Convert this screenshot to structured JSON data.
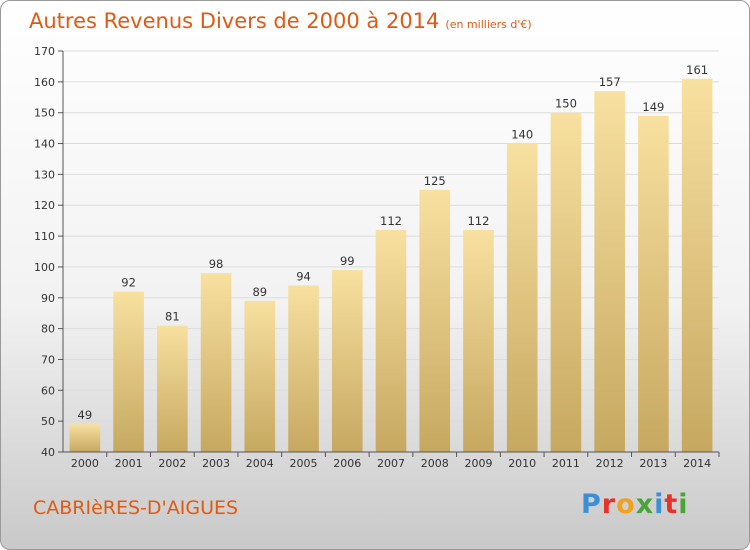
{
  "header": {
    "title": "Autres Revenus Divers de 2000 à 2014",
    "unit": "(en milliers d'€)"
  },
  "footer": {
    "commune": "CABRIèRES-D'AIGUES",
    "brand": "Proxiti"
  },
  "colors": {
    "title": "#e05a12",
    "bar_top": "#f8e0a0",
    "bar_bottom": "#c6a860",
    "brand_letters": [
      "#3a8fd8",
      "#e7312a",
      "#f0a21c",
      "#4aa538",
      "#3a8fd8",
      "#e7312a",
      "#4aa538"
    ]
  },
  "chart_data": {
    "type": "bar",
    "title": "Autres Revenus Divers de 2000 à 2014",
    "xlabel": "",
    "ylabel": "",
    "categories": [
      "2000",
      "2001",
      "2002",
      "2003",
      "2004",
      "2005",
      "2006",
      "2007",
      "2008",
      "2009",
      "2010",
      "2011",
      "2012",
      "2013",
      "2014"
    ],
    "values": [
      49,
      92,
      81,
      98,
      89,
      94,
      99,
      112,
      125,
      112,
      140,
      150,
      157,
      149,
      161
    ],
    "ylim": [
      40,
      170
    ],
    "yticks": [
      40,
      50,
      60,
      70,
      80,
      90,
      100,
      110,
      120,
      130,
      140,
      150,
      160,
      170
    ],
    "grid": true,
    "data_labels": true
  }
}
